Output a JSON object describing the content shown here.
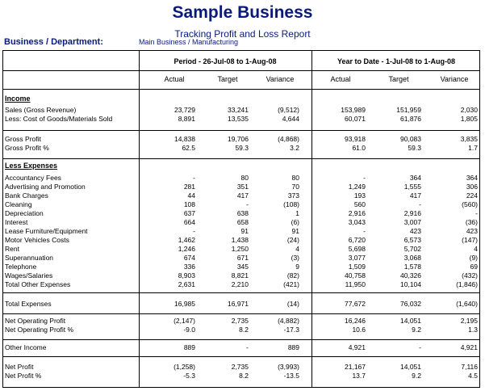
{
  "header": {
    "title": "Sample Business",
    "subtitle": "Tracking Profit and Loss Report",
    "bd_label": "Business / Department:",
    "bd_value": "Main Business / Manufacturing"
  },
  "periods": {
    "period": "Period - 26-Jul-08 to 1-Aug-08",
    "ytd": "Year to Date - 1-Jul-08 to 1-Aug-08"
  },
  "columns": [
    "Actual",
    "Target",
    "Variance",
    "Actual",
    "Target",
    "Variance"
  ],
  "sections": {
    "income": "Income",
    "less_expenses": "Less Expenses"
  },
  "groups": [
    {
      "section": "income",
      "rows": [
        {
          "label": "Sales (Gross Revenue)",
          "values": [
            "23,729",
            "33,241",
            "(9,512)",
            "153,989",
            "151,959",
            "2,030"
          ]
        },
        {
          "label": "Less: Cost of Goods/Materials Sold",
          "values": [
            "8,891",
            "13,535",
            "4,644",
            "60,071",
            "61,876",
            "1,805"
          ]
        }
      ]
    },
    {
      "rows": [
        {
          "label": "Gross Profit",
          "values": [
            "14,838",
            "19,706",
            "(4,868)",
            "93,918",
            "90,083",
            "3,835"
          ]
        },
        {
          "label": "Gross Profit %",
          "values": [
            "62.5",
            "59.3",
            "3.2",
            "61.0",
            "59.3",
            "1.7"
          ]
        }
      ]
    },
    {
      "section": "less_expenses",
      "rows": [
        {
          "label": "Accountancy Fees",
          "values": [
            "-",
            "80",
            "80",
            "-",
            "364",
            "364"
          ]
        },
        {
          "label": "Advertising and Promotion",
          "values": [
            "281",
            "351",
            "70",
            "1,249",
            "1,555",
            "306"
          ]
        },
        {
          "label": "Bank Charges",
          "values": [
            "44",
            "417",
            "373",
            "193",
            "417",
            "224"
          ]
        },
        {
          "label": "Cleaning",
          "values": [
            "108",
            "-",
            "(108)",
            "560",
            "-",
            "(560)"
          ]
        },
        {
          "label": "Depreciation",
          "values": [
            "637",
            "638",
            "1",
            "2,916",
            "2,916",
            "-"
          ]
        },
        {
          "label": "Interest",
          "values": [
            "664",
            "658",
            "(6)",
            "3,043",
            "3,007",
            "(36)"
          ]
        },
        {
          "label": "Lease Furniture/Equipment",
          "values": [
            "-",
            "91",
            "91",
            "-",
            "423",
            "423"
          ]
        },
        {
          "label": "Motor Vehicles Costs",
          "values": [
            "1,462",
            "1,438",
            "(24)",
            "6,720",
            "6,573",
            "(147)"
          ]
        },
        {
          "label": "Rent",
          "values": [
            "1,246",
            "1,250",
            "4",
            "5,698",
            "5,702",
            "4"
          ]
        },
        {
          "label": "Superannuation",
          "values": [
            "674",
            "671",
            "(3)",
            "3,077",
            "3,068",
            "(9)"
          ]
        },
        {
          "label": "Telephone",
          "values": [
            "336",
            "345",
            "9",
            "1,509",
            "1,578",
            "69"
          ]
        },
        {
          "label": "Wages/Salaries",
          "values": [
            "8,903",
            "8,821",
            "(82)",
            "40,758",
            "40,326",
            "(432)"
          ]
        },
        {
          "label": "Total Other Expenses",
          "values": [
            "2,631",
            "2,210",
            "(421)",
            "11,950",
            "10,104",
            "(1,846)"
          ]
        }
      ]
    },
    {
      "rows": [
        {
          "label": "Total Expenses",
          "values": [
            "16,985",
            "16,971",
            "(14)",
            "77,672",
            "76,032",
            "(1,640)"
          ]
        }
      ]
    },
    {
      "rows": [
        {
          "label": "Net Operating Profit",
          "values": [
            "(2,147)",
            "2,735",
            "(4,882)",
            "16,246",
            "14,051",
            "2,195"
          ]
        },
        {
          "label": "Net Operating Profit %",
          "values": [
            "-9.0",
            "8.2",
            "-17.3",
            "10.6",
            "9.2",
            "1.3"
          ]
        }
      ]
    },
    {
      "rows": [
        {
          "label": "Other Income",
          "values": [
            "889",
            "-",
            "889",
            "4,921",
            "-",
            "4,921"
          ]
        }
      ]
    },
    {
      "rows": [
        {
          "label": "Net Profit",
          "values": [
            "(1,258)",
            "2,735",
            "(3,993)",
            "21,167",
            "14,051",
            "7,116"
          ]
        },
        {
          "label": "Net Profit %",
          "values": [
            "-5.3",
            "8.2",
            "-13.5",
            "13.7",
            "9.2",
            "4.5"
          ]
        }
      ]
    }
  ]
}
